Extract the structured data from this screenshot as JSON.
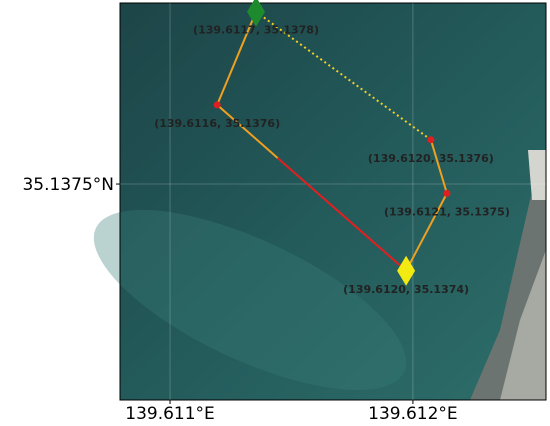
{
  "chart_data": {
    "type": "map",
    "xlim": [
      139.611397,
      139.612274
    ],
    "ylim": [
      35.137129,
      35.137811
    ],
    "xticks": [
      {
        "value": 139.6115,
        "label": "139.611°E"
      },
      {
        "value": 139.612,
        "label": "139.612°E"
      }
    ],
    "yticks": [
      {
        "value": 35.1375,
        "label": "35.1375°N"
      }
    ],
    "grid": true,
    "points": [
      {
        "lon": 139.611677,
        "lat": 35.137796,
        "label": "(139.6117, 35.1378)",
        "marker": "diamond",
        "color": "#1e8a2e"
      },
      {
        "lon": 139.611597,
        "lat": 35.137636,
        "label": "(139.6116, 35.1376)",
        "marker": "dot",
        "color": "#e02020"
      },
      {
        "lon": 139.611986,
        "lat": 35.137351,
        "label": "(139.6120, 35.1374)",
        "marker": "diamond",
        "color": "#f2ea10"
      },
      {
        "lon": 139.61207,
        "lat": 35.137484,
        "label": "(139.6121, 35.1375)",
        "marker": "dot",
        "color": "#e02020"
      },
      {
        "lon": 139.612037,
        "lat": 35.137576,
        "label": "(139.6120, 35.1376)",
        "marker": "dot",
        "color": "#e02020"
      }
    ]
  }
}
